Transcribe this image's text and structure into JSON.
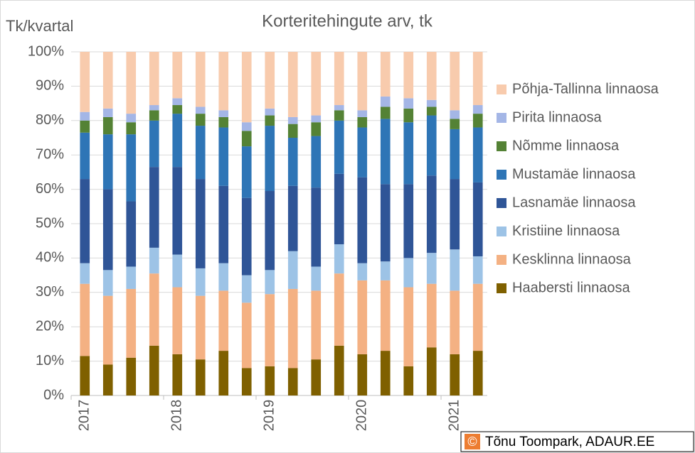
{
  "chart_data": {
    "type": "stacked_bar",
    "title": "Korteritehingute arv, tk",
    "y_label": "Tk/kvartal",
    "copyright_symbol": "©",
    "copyright": "Tõnu Toompark, ADAUR.EE",
    "categories": [
      "2017",
      null,
      null,
      null,
      "2018",
      null,
      null,
      null,
      "2019",
      null,
      null,
      null,
      "2020",
      null,
      null,
      null,
      "2021",
      null
    ],
    "series": [
      {
        "name": "Haabersti linnaosa",
        "color": "#7f6000",
        "values": [
          11.5,
          9,
          11,
          14.5,
          12,
          10.5,
          13,
          8,
          8.5,
          8,
          10.5,
          14.5,
          12,
          13,
          8.5,
          14,
          12,
          13
        ]
      },
      {
        "name": "Kesklinna linnaosa",
        "color": "#f4b183",
        "values": [
          21,
          20,
          20,
          21,
          19.5,
          18.5,
          17.5,
          19,
          21,
          23,
          20,
          21,
          21.5,
          20.5,
          23,
          18.5,
          18.5,
          19.5
        ]
      },
      {
        "name": "Kristiine linnaosa",
        "color": "#9dc3e6",
        "values": [
          6,
          7.5,
          6.5,
          7.5,
          9.5,
          8,
          8,
          8,
          7,
          11,
          7,
          8.5,
          5,
          5.5,
          8.5,
          9,
          12,
          8
        ]
      },
      {
        "name": "Lasnamäe linnaosa",
        "color": "#2f5597",
        "values": [
          24.5,
          23.5,
          19,
          23.5,
          25.5,
          26,
          22.5,
          22.5,
          23,
          19,
          23,
          20.5,
          25,
          22.5,
          21.5,
          22.5,
          20.5,
          21.5
        ]
      },
      {
        "name": "Mustamäe linnaosa",
        "color": "#2e75b6",
        "values": [
          13.5,
          16,
          19.5,
          13.5,
          15.5,
          15.5,
          17,
          15,
          19,
          14,
          15,
          15.5,
          14.5,
          19,
          18,
          17.5,
          14.5,
          16
        ]
      },
      {
        "name": "Nõmme linnaosa",
        "color": "#548235",
        "values": [
          3.5,
          5,
          3.5,
          3,
          2.5,
          3.5,
          3,
          4.5,
          3,
          4,
          4,
          3,
          3,
          3.5,
          4,
          2.5,
          3,
          4
        ]
      },
      {
        "name": "Pirita linnaosa",
        "color": "#a4b6e6",
        "values": [
          2.5,
          2.5,
          2.5,
          1.5,
          2,
          2,
          2,
          2.5,
          2,
          2,
          2,
          1.5,
          2,
          3,
          3,
          2,
          2.5,
          2.5
        ]
      },
      {
        "name": "Põhja-Tallinna linnaosa",
        "color": "#f8cbad",
        "values": [
          17.5,
          16.5,
          18,
          15.5,
          13.5,
          16,
          17,
          20.5,
          16.5,
          19,
          18.5,
          15.5,
          17,
          13,
          13.5,
          14,
          17,
          15.5
        ]
      }
    ],
    "ylim": [
      0,
      100
    ],
    "yticks": [
      {
        "value": 0,
        "label": "0%"
      },
      {
        "value": 10,
        "label": "10%"
      },
      {
        "value": 20,
        "label": "20%"
      },
      {
        "value": 30,
        "label": "30%"
      },
      {
        "value": 40,
        "label": "40%"
      },
      {
        "value": 50,
        "label": "50%"
      },
      {
        "value": 60,
        "label": "60%"
      },
      {
        "value": 70,
        "label": "70%"
      },
      {
        "value": 80,
        "label": "80%"
      },
      {
        "value": 90,
        "label": "90%"
      },
      {
        "value": 100,
        "label": "100%"
      }
    ],
    "grid": true,
    "legend": "right"
  }
}
